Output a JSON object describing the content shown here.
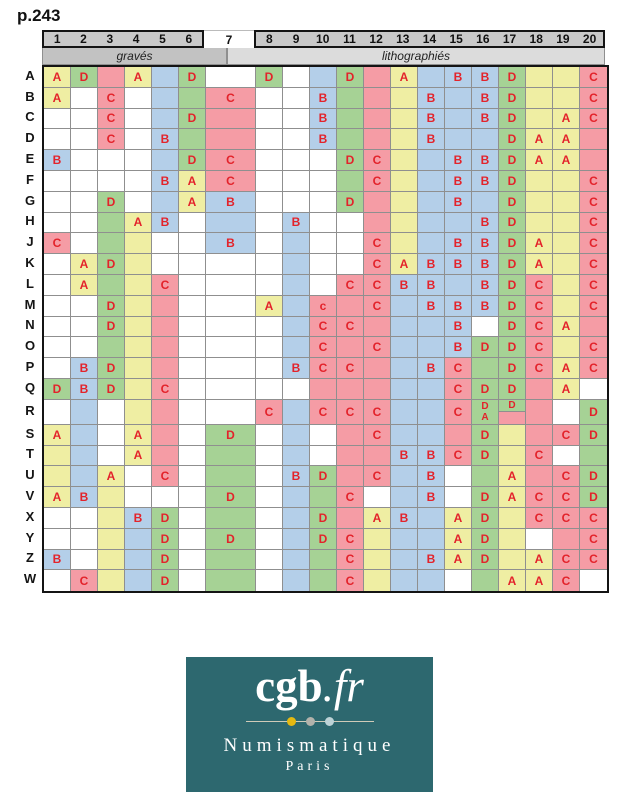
{
  "page_label": "p.243",
  "header": {
    "columns": [
      "1",
      "2",
      "3",
      "4",
      "5",
      "6",
      "7",
      "8",
      "9",
      "10",
      "11",
      "12",
      "13",
      "14",
      "15",
      "16",
      "17",
      "18",
      "19",
      "20"
    ],
    "sections": {
      "left_label": "gravés",
      "right_label": "lithographiés"
    }
  },
  "colors": {
    "palette": {
      "y": "#EFEEA3",
      "g": "#A6D295",
      "b": "#B4CFE9",
      "p": "#F59CA5",
      "w": "#FFFFFF"
    },
    "letter_red": "#E3232B",
    "header_gray": "#C9C9C9",
    "band_graves_gray": "#C2C2C2",
    "band_litho_gray": "#DCDCDC",
    "logo_teal": "#2D686F",
    "dot_colors": [
      "#E5B911",
      "#B2B2AB",
      "#BDD3D7"
    ]
  },
  "grid": {
    "row_labels": [
      "A",
      "B",
      "C",
      "D",
      "E",
      "F",
      "G",
      "H",
      "J",
      "K",
      "L",
      "M",
      "N",
      "O",
      "P",
      "Q",
      "R",
      "S",
      "T",
      "U",
      "V",
      "X",
      "Y",
      "Z",
      "W"
    ],
    "tall_row_label": "R",
    "rows": [
      {
        "label": "A",
        "cells": [
          "A|y",
          "D|g",
          "|p",
          "A|y",
          "|b",
          "D|g",
          "|w",
          "D|g",
          "|w",
          "|b",
          "D|g",
          "|p",
          "A|y",
          "|b",
          "B|b",
          "B|b",
          "D|g",
          "|y",
          "|y",
          "C|p"
        ]
      },
      {
        "label": "B",
        "cells": [
          "A|y",
          "|w",
          "C|p",
          "|w",
          "|b",
          "|g",
          "C|p",
          "|w",
          "|w",
          "B|b",
          "|g",
          "|p",
          "|y",
          "B|b",
          "|b",
          "B|b",
          "D|g",
          "|y",
          "|y",
          "C|p"
        ]
      },
      {
        "label": "C",
        "cells": [
          "|w",
          "|w",
          "C|p",
          "|w",
          "|b",
          "D|g",
          "|p",
          "|w",
          "|w",
          "B|b",
          "|g",
          "|p",
          "|y",
          "B|b",
          "|b",
          "B|b",
          "D|g",
          "|y",
          "A|y",
          "C|p"
        ]
      },
      {
        "label": "D",
        "cells": [
          "|w",
          "|w",
          "C|p",
          "|w",
          "B|b",
          "|g",
          "|p",
          "|w",
          "|w",
          "B|b",
          "|g",
          "|p",
          "|y",
          "B|b",
          "|b",
          "|b",
          "D|g",
          "A|y",
          "A|y",
          "|p"
        ]
      },
      {
        "label": "E",
        "cells": [
          "B|b",
          "|w",
          "|w",
          "|w",
          "|b",
          "D|g",
          "C|p",
          "|w",
          "|w",
          "|w",
          "D|g",
          "C|p",
          "|y",
          "|b",
          "B|b",
          "B|b",
          "D|g",
          "A|y",
          "A|y",
          "|p"
        ]
      },
      {
        "label": "F",
        "cells": [
          "|w",
          "|w",
          "|w",
          "|w",
          "B|b",
          "A|y",
          "C|p",
          "|w",
          "|w",
          "|w",
          "|g",
          "C|p",
          "|y",
          "|b",
          "B|b",
          "B|b",
          "D|g",
          "|y",
          "|y",
          "C|p"
        ]
      },
      {
        "label": "G",
        "cells": [
          "|w",
          "|w",
          "D|g",
          "|w",
          "|b",
          "A|y",
          "B|b",
          "|w",
          "|w",
          "|w",
          "D|g",
          "|p",
          "|y",
          "|b",
          "B|b",
          "|b",
          "D|g",
          "|y",
          "|y",
          "C|p"
        ]
      },
      {
        "label": "H",
        "cells": [
          "|w",
          "|w",
          "|g",
          "A|y",
          "B|b",
          "|w",
          "|b",
          "|w",
          "B|b",
          "|w",
          "|w",
          "|p",
          "|y",
          "|b",
          "|b",
          "B|b",
          "D|g",
          "|y",
          "|y",
          "C|p"
        ]
      },
      {
        "label": "J",
        "cells": [
          "C|p",
          "|w",
          "|g",
          "|y",
          "|w",
          "|w",
          "B|b",
          "|w",
          "|b",
          "|w",
          "|w",
          "C|p",
          "|y",
          "|b",
          "B|b",
          "B|b",
          "D|g",
          "A|y",
          "|y",
          "C|p"
        ]
      },
      {
        "label": "K",
        "cells": [
          "|w",
          "A|y",
          "D|g",
          "|y",
          "|w",
          "|w",
          "|w",
          "|w",
          "|b",
          "|w",
          "|w",
          "C|p",
          "A|y",
          "B|b",
          "B|b",
          "B|b",
          "D|g",
          "A|y",
          "|y",
          "C|p"
        ]
      },
      {
        "label": "L",
        "cells": [
          "|w",
          "A|y",
          "|g",
          "|y",
          "C|p",
          "|w",
          "|w",
          "|w",
          "|b",
          "|w",
          "C|p",
          "C|p",
          "B|b",
          "B|b",
          "|b",
          "B|b",
          "D|g",
          "C|p",
          "|y",
          "C|p"
        ]
      },
      {
        "label": "M",
        "cells": [
          "|w",
          "|w",
          "D|g",
          "|y",
          "|p",
          "|w",
          "|w",
          "A|y",
          "|b",
          "c|p",
          "|p",
          "C|p",
          "|b",
          "B|b",
          "B|b",
          "B|b",
          "D|g",
          "C|p",
          "|y",
          "C|p"
        ]
      },
      {
        "label": "N",
        "cells": [
          "|w",
          "|w",
          "D|g",
          "|y",
          "|p",
          "|w",
          "|w",
          "|w",
          "|b",
          "C|p",
          "C|p",
          "|p",
          "|b",
          "|b",
          "B|b",
          "|w",
          "D|g",
          "C|p",
          "A|y",
          "|p"
        ]
      },
      {
        "label": "O",
        "cells": [
          "|w",
          "|w",
          "|g",
          "|y",
          "|p",
          "|w",
          "|w",
          "|w",
          "|b",
          "C|p",
          "|p",
          "C|p",
          "|b",
          "|b",
          "B|b",
          "D|g",
          "D|g",
          "C|p",
          "|y",
          "C|p"
        ]
      },
      {
        "label": "P",
        "cells": [
          "|w",
          "B|b",
          "D|g",
          "|y",
          "|p",
          "|w",
          "|w",
          "|w",
          "B|b",
          "C|p",
          "C|p",
          "|p",
          "|b",
          "B|b",
          "C|p",
          "|g",
          "D|g",
          "C|p",
          "A|y",
          "C|p"
        ]
      },
      {
        "label": "Q",
        "cells": [
          "D|g",
          "B|b",
          "D|g",
          "|y",
          "C|p",
          "|w",
          "|w",
          "|w",
          "|w",
          "|p",
          "|p",
          "|p",
          "|b",
          "|b",
          "C|p",
          "D|g",
          "D|g",
          "|p",
          "A|y",
          "|w"
        ]
      },
      {
        "label": "R",
        "cells": [
          "|w",
          "|b",
          "|w",
          "|y",
          "|p",
          "|w",
          "|w",
          "C|p",
          "|b",
          "C|p",
          "C|p",
          "C|p",
          "|b",
          "|b",
          "C|p",
          "D/A|g",
          "D/|g/p",
          "|p",
          "|w",
          "D|g"
        ]
      },
      {
        "label": "S",
        "cells": [
          "A|y",
          "|b",
          "|w",
          "A|y",
          "|p",
          "|w",
          "D|g",
          "|w",
          "|b",
          "|w",
          "|p",
          "C|p",
          "|b",
          "|b",
          "|p",
          "D|g",
          "|y",
          "|p",
          "C|p",
          "D|g"
        ]
      },
      {
        "label": "T",
        "cells": [
          "|y",
          "|b",
          "|w",
          "A|y",
          "|p",
          "|w",
          "|g",
          "|w",
          "|b",
          "|w",
          "|p",
          "|p",
          "B|b",
          "B|b",
          "C|p",
          "D|g",
          "|y",
          "C|p",
          "|w",
          "|g"
        ]
      },
      {
        "label": "U",
        "cells": [
          "|y",
          "|b",
          "A|y",
          "|w",
          "C|p",
          "|w",
          "|g",
          "|w",
          "B|b",
          "D|g",
          "|p",
          "C|p",
          "|b",
          "B|b",
          "|w",
          "|g",
          "A|y",
          "|p",
          "C|p",
          "D|g"
        ]
      },
      {
        "label": "V",
        "cells": [
          "A|y",
          "B|b",
          "|y",
          "|w",
          "|w",
          "|w",
          "D|g",
          "|w",
          "|b",
          "|g",
          "C|p",
          "|w",
          "|b",
          "B|b",
          "|w",
          "D|g",
          "A|y",
          "C|p",
          "C|p",
          "D|g"
        ]
      },
      {
        "label": "X",
        "cells": [
          "|w",
          "|w",
          "|y",
          "B|b",
          "D|g",
          "|w",
          "|g",
          "|w",
          "|b",
          "D|g",
          "|p",
          "A|y",
          "B|b",
          "|b",
          "A|y",
          "D|g",
          "|y",
          "C|p",
          "C|p",
          "C|p"
        ]
      },
      {
        "label": "Y",
        "cells": [
          "|w",
          "|w",
          "|y",
          "|b",
          "D|g",
          "|w",
          "D|g",
          "|w",
          "|b",
          "D|g",
          "C|p",
          "|y",
          "|b",
          "|b",
          "A|y",
          "D|g",
          "|y",
          "|w",
          "|p",
          "C|p"
        ]
      },
      {
        "label": "Z",
        "cells": [
          "B|b",
          "|w",
          "|y",
          "|b",
          "D|g",
          "|w",
          "|g",
          "|w",
          "|b",
          "|g",
          "C|p",
          "|y",
          "|b",
          "B|b",
          "A|y",
          "D|g",
          "|y",
          "A|y",
          "C|p",
          "C|p"
        ]
      },
      {
        "label": "W",
        "cells": [
          "|w",
          "C|p",
          "|y",
          "|b",
          "D|g",
          "|w",
          "|g",
          "|w",
          "|b",
          "|g",
          "C|p",
          "|y",
          "|b",
          "|b",
          "|w",
          "|g",
          "A|y",
          "A|y",
          "C|p",
          "|w"
        ]
      }
    ]
  },
  "logo": {
    "brand": "cgb",
    "tld": ".fr",
    "line1": "Numismatique",
    "line2": "Paris"
  }
}
